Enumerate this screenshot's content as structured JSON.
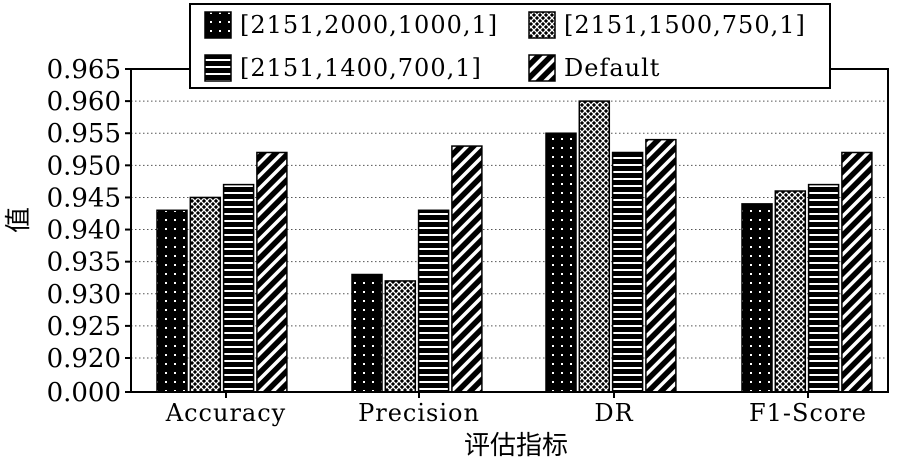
{
  "chart_data": {
    "type": "bar",
    "categories": [
      "Accuracy",
      "Precision",
      "DR",
      "F1-Score"
    ],
    "series": [
      {
        "name": "[2151,2000,1000,1]",
        "pattern": "dots",
        "values": [
          0.943,
          0.933,
          0.955,
          0.944
        ]
      },
      {
        "name": "[2151,1500,750,1]",
        "pattern": "crosshatch",
        "values": [
          0.945,
          0.932,
          0.96,
          0.946
        ]
      },
      {
        "name": "[2151,1400,700,1]",
        "pattern": "horizontal",
        "values": [
          0.947,
          0.943,
          0.952,
          0.947
        ]
      },
      {
        "name": "Default",
        "pattern": "diagonal",
        "values": [
          0.952,
          0.953,
          0.954,
          0.952
        ]
      }
    ],
    "yticks": [
      "0.000",
      "0.920",
      "0.925",
      "0.930",
      "0.935",
      "0.940",
      "0.945",
      "0.950",
      "0.955",
      "0.960",
      "0.965"
    ],
    "ylim_broken": [
      0.915,
      0.965
    ],
    "xlabel": "评估指标",
    "ylabel": "值",
    "grid": "horizontal-dotted",
    "legend_position": "top"
  }
}
